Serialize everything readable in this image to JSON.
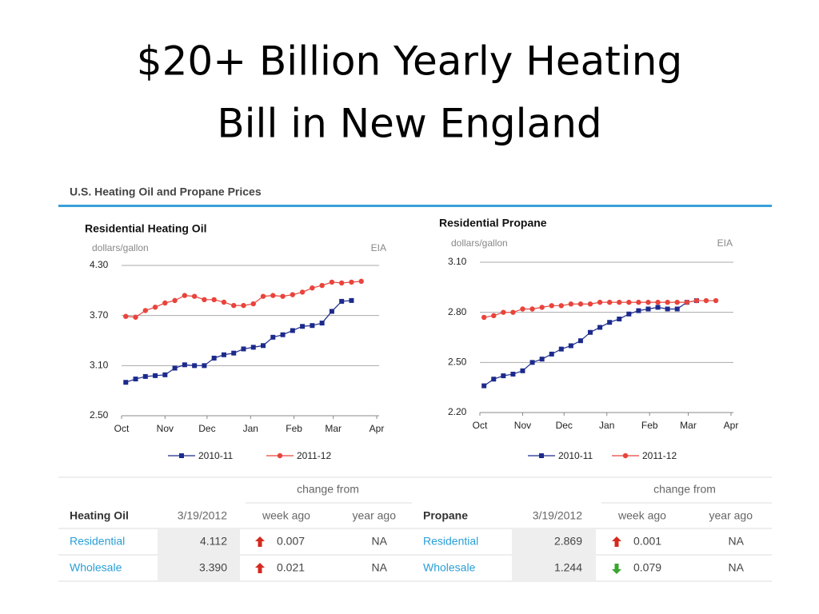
{
  "title": [
    "$20+ Billion Yearly Heating",
    "Bill in New England"
  ],
  "section_title": "U.S. Heating Oil and Propane Prices",
  "chart_data": [
    {
      "type": "line",
      "title": "Residential Heating Oil",
      "y_label": "dollars/gallon",
      "source": "EIA",
      "x": [
        3,
        10,
        17,
        24,
        31,
        38,
        45,
        52,
        59,
        66,
        73,
        80,
        87,
        94,
        101,
        108,
        115,
        122,
        129,
        136,
        143,
        150,
        157,
        164,
        171
      ],
      "xlim": [
        0,
        182
      ],
      "xticks": [
        {
          "value": 0,
          "label": "Oct"
        },
        {
          "value": 31,
          "label": "Nov"
        },
        {
          "value": 61,
          "label": "Dec"
        },
        {
          "value": 92,
          "label": "Jan"
        },
        {
          "value": 123,
          "label": "Feb"
        },
        {
          "value": 151,
          "label": "Mar"
        },
        {
          "value": 182,
          "label": "Apr"
        }
      ],
      "ylim": [
        2.5,
        4.3
      ],
      "yticks": [
        {
          "value": 2.5,
          "label": "2.50"
        },
        {
          "value": 3.1,
          "label": "3.10"
        },
        {
          "value": 3.7,
          "label": "3.70"
        },
        {
          "value": 4.3,
          "label": "4.30"
        }
      ],
      "grid": true,
      "series": [
        {
          "name": "2010-11",
          "color": "#1c2a8c",
          "marker": "square",
          "values": [
            2.9,
            2.94,
            2.97,
            2.98,
            2.99,
            3.07,
            3.11,
            3.1,
            3.1,
            3.19,
            3.23,
            3.25,
            3.3,
            3.32,
            3.34,
            3.44,
            3.47,
            3.52,
            3.57,
            3.58,
            3.61,
            3.75,
            3.87,
            3.88,
            null
          ]
        },
        {
          "name": "2011-12",
          "color": "#e8443c",
          "marker": "circle",
          "values": [
            3.69,
            3.68,
            3.76,
            3.8,
            3.85,
            3.88,
            3.94,
            3.93,
            3.89,
            3.89,
            3.86,
            3.82,
            3.82,
            3.84,
            3.93,
            3.94,
            3.93,
            3.95,
            3.98,
            4.03,
            4.06,
            4.1,
            4.09,
            4.1,
            4.11
          ]
        }
      ]
    },
    {
      "type": "line",
      "title": "Residential Propane",
      "y_label": "dollars/gallon",
      "source": "EIA",
      "x": [
        3,
        10,
        17,
        24,
        31,
        38,
        45,
        52,
        59,
        66,
        73,
        80,
        87,
        94,
        101,
        108,
        115,
        122,
        129,
        136,
        143,
        150,
        157,
        164,
        171
      ],
      "xlim": [
        0,
        182
      ],
      "xticks": [
        {
          "value": 0,
          "label": "Oct"
        },
        {
          "value": 31,
          "label": "Nov"
        },
        {
          "value": 61,
          "label": "Dec"
        },
        {
          "value": 92,
          "label": "Jan"
        },
        {
          "value": 123,
          "label": "Feb"
        },
        {
          "value": 151,
          "label": "Mar"
        },
        {
          "value": 182,
          "label": "Apr"
        }
      ],
      "ylim": [
        2.2,
        3.1
      ],
      "yticks": [
        {
          "value": 2.2,
          "label": "2.20"
        },
        {
          "value": 2.5,
          "label": "2.50"
        },
        {
          "value": 2.8,
          "label": "2.80"
        },
        {
          "value": 3.1,
          "label": "3.10"
        }
      ],
      "grid": true,
      "series": [
        {
          "name": "2010-11",
          "color": "#1c2a8c",
          "marker": "square",
          "values": [
            2.36,
            2.4,
            2.42,
            2.43,
            2.45,
            2.5,
            2.52,
            2.55,
            2.58,
            2.6,
            2.63,
            2.68,
            2.71,
            2.74,
            2.76,
            2.79,
            2.81,
            2.82,
            2.83,
            2.82,
            2.82,
            2.86,
            2.87,
            null,
            null
          ]
        },
        {
          "name": "2011-12",
          "color": "#e8443c",
          "marker": "circle",
          "values": [
            2.77,
            2.78,
            2.8,
            2.8,
            2.82,
            2.82,
            2.83,
            2.84,
            2.84,
            2.85,
            2.85,
            2.85,
            2.86,
            2.86,
            2.86,
            2.86,
            2.86,
            2.86,
            2.86,
            2.86,
            2.86,
            2.86,
            2.87,
            2.87,
            2.87
          ]
        }
      ]
    }
  ],
  "table": {
    "change_from": [
      "change from",
      "change from"
    ],
    "header": [
      "Heating Oil",
      "3/19/2012",
      "week ago",
      "year ago",
      "Propane",
      "3/19/2012",
      "week ago",
      "year ago"
    ],
    "rows": [
      [
        "Residential",
        "4.112",
        {
          "direction": "up",
          "value": "0.007"
        },
        "NA",
        "Residential",
        "2.869",
        {
          "direction": "up",
          "value": "0.001"
        },
        "NA"
      ],
      [
        "Wholesale",
        "3.390",
        {
          "direction": "up",
          "value": "0.021"
        },
        "NA",
        "Wholesale",
        "1.244",
        {
          "direction": "down",
          "value": "0.079"
        },
        "NA"
      ]
    ]
  }
}
